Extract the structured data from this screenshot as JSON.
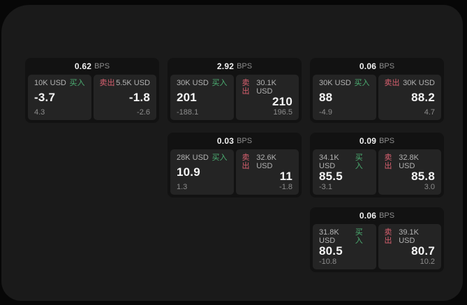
{
  "labels": {
    "bps_unit": "BPS",
    "buy": "买入",
    "sell": "卖出"
  },
  "colors": {
    "buy_accent": "#4caf72",
    "sell_accent": "#d8606f",
    "surface_bg": "#1a1a1a",
    "card_bg": "#121212",
    "panel_bg": "#242424"
  },
  "cards": [
    {
      "bps": "0.62",
      "buy": {
        "amount": "10K USD",
        "value": "-3.7",
        "change": "4.3"
      },
      "sell": {
        "amount": "5.5K USD",
        "value": "-1.8",
        "change": "-2.6"
      }
    },
    {
      "bps": "2.92",
      "buy": {
        "amount": "30K USD",
        "value": "201",
        "change": "-188.1"
      },
      "sell": {
        "amount": "30.1K USD",
        "value": "210",
        "change": "196.5"
      }
    },
    {
      "bps": "0.06",
      "buy": {
        "amount": "30K USD",
        "value": "88",
        "change": "-4.9"
      },
      "sell": {
        "amount": "30K USD",
        "value": "88.2",
        "change": "4.7"
      }
    },
    {
      "bps": "0.03",
      "buy": {
        "amount": "28K USD",
        "value": "10.9",
        "change": "1.3"
      },
      "sell": {
        "amount": "32.6K USD",
        "value": "11",
        "change": "-1.8"
      }
    },
    {
      "bps": "0.09",
      "buy": {
        "amount": "34.1K USD",
        "value": "85.5",
        "change": "-3.1"
      },
      "sell": {
        "amount": "32.8K USD",
        "value": "85.8",
        "change": "3.0"
      }
    },
    {
      "bps": "0.06",
      "buy": {
        "amount": "31.8K USD",
        "value": "80.5",
        "change": "-10.8"
      },
      "sell": {
        "amount": "39.1K USD",
        "value": "80.7",
        "change": "10.2"
      }
    }
  ]
}
